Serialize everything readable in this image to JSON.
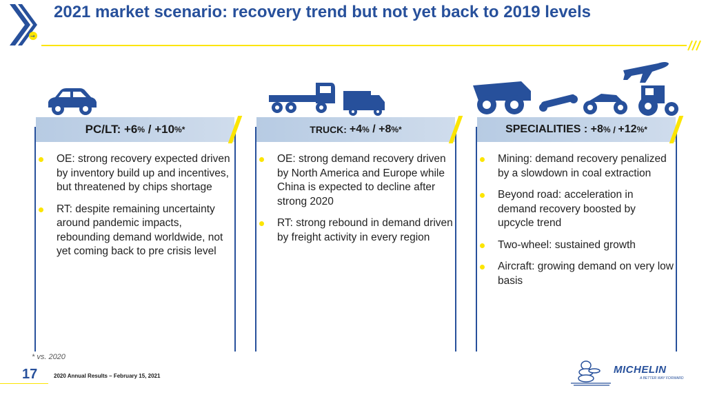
{
  "title": "2021 market scenario: recovery trend but not yet back to 2019 levels",
  "columns": [
    {
      "banner_label": "PC/LT:",
      "banner_a": "+6",
      "banner_pct_a": "%",
      "banner_sep": " / ",
      "banner_b": "+10",
      "banner_pct_b": "%*",
      "icon": "car-icon",
      "bullets": [
        "OE: strong recovery expected driven by inventory build up and incentives, but threatened by chips shortage",
        "RT: despite remaining uncertainty around pandemic impacts, rebounding demand worldwide, not yet coming back to pre crisis level"
      ]
    },
    {
      "banner_label": "TRUCK:",
      "banner_a": "+4",
      "banner_pct_a": "%",
      "banner_sep": " / ",
      "banner_b": "+8",
      "banner_pct_b": "%*",
      "icon": "truck-icon",
      "bullets": [
        "OE: strong demand recovery driven by North America and Europe while China is expected to decline after strong 2020",
        "RT: strong rebound in demand driven by freight activity in every region"
      ]
    },
    {
      "banner_label": "SPECIALITIES :",
      "banner_a": "+8",
      "banner_pct_a": "%",
      "banner_sep": " / ",
      "banner_b": "+12",
      "banner_pct_b": "%*",
      "icon": "specialities-icon",
      "bullets": [
        "Mining: demand recovery penalized by a slowdown in coal extraction",
        "Beyond road: acceleration in demand recovery boosted by upcycle trend",
        "Two-wheel: sustained growth",
        "Aircraft: growing demand on very low basis"
      ]
    }
  ],
  "footnote": "* vs. 2020",
  "page_number": "17",
  "footer_text": "2020 Annual Results – February 15, 2021",
  "brand": {
    "name": "MICHELIN",
    "tagline": "A BETTER WAY FORWARD"
  },
  "colors": {
    "brand_blue": "#27509b",
    "accent_yellow": "#fce500",
    "banner_blue": "#b7cbe3"
  }
}
